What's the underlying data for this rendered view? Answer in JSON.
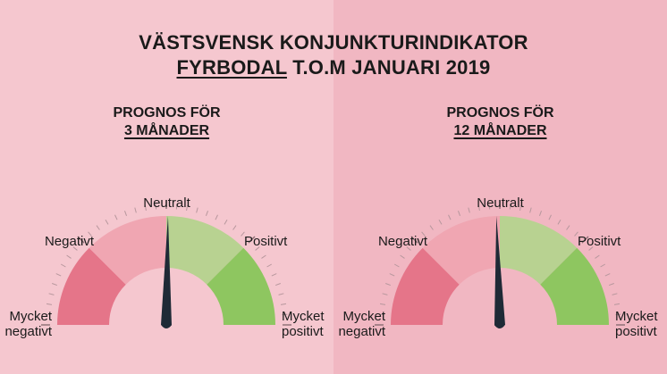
{
  "title": {
    "line1": "VÄSTSVENSK KONJUNKTURINDIKATOR",
    "region": "FYRBODAL",
    "period": "T.O.M JANUARI 2019"
  },
  "colors": {
    "bg_left": "#f5c7cf",
    "bg_right": "#f1b7c2",
    "very_negative": "#e57589",
    "negative": "#f0a6b2",
    "positive": "#b8d291",
    "very_positive": "#8ec660",
    "needle": "#1f2a36"
  },
  "gauges": [
    {
      "heading1": "PROGNOS FÖR",
      "heading2": "3 MÅNADER",
      "needle_fraction": 0.505,
      "labels": {
        "neutral": "Neutralt",
        "negative": "Negativt",
        "positive": "Positivt",
        "very_negative_1": "Mycket",
        "very_negative_2": "negativt",
        "very_positive_1": "Mycket",
        "very_positive_2": "positivt"
      }
    },
    {
      "heading1": "PROGNOS FÖR",
      "heading2": "12 MÅNADER",
      "needle_fraction": 0.49,
      "labels": {
        "neutral": "Neutralt",
        "negative": "Negativt",
        "positive": "Positivt",
        "very_negative_1": "Mycket",
        "very_negative_2": "negativt",
        "very_positive_1": "Mycket",
        "very_positive_2": "positivt"
      }
    }
  ]
}
